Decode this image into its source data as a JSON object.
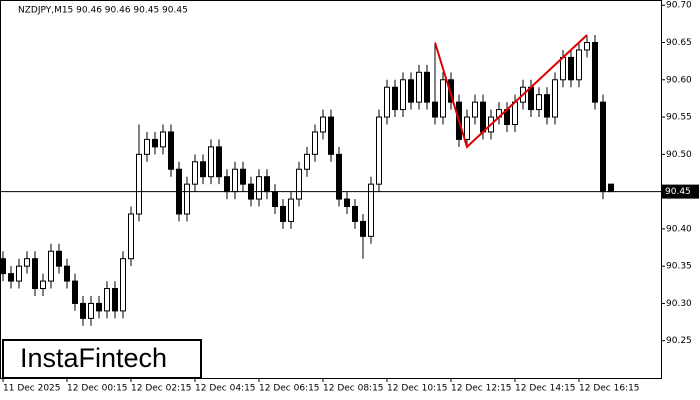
{
  "chart_data": {
    "type": "candlestick",
    "title": "NZDJPY,M15  90.46 90.46 90.45 90.45",
    "logo": "InstaFintech",
    "categories": [
      "11 Dec 2025",
      null,
      null,
      null,
      null,
      null,
      null,
      null,
      "12 Dec 00:15",
      null,
      null,
      null,
      null,
      null,
      null,
      null,
      "12 Dec 02:15",
      null,
      null,
      null,
      null,
      null,
      null,
      null,
      "12 Dec 04:15",
      null,
      null,
      null,
      null,
      null,
      null,
      null,
      "12 Dec 06:15",
      null,
      null,
      null,
      null,
      null,
      null,
      null,
      "12 Dec 08:15",
      null,
      null,
      null,
      null,
      null,
      null,
      null,
      "12 Dec 10:15",
      null,
      null,
      null,
      null,
      null,
      null,
      null,
      "12 Dec 12:15",
      null,
      null,
      null,
      null,
      null,
      null,
      null,
      "12 Dec 14:15",
      null,
      null,
      null,
      null,
      null,
      null,
      null,
      "12 Dec 16:15",
      null,
      null,
      null,
      null
    ],
    "open": [
      90.36,
      90.34,
      90.33,
      90.35,
      90.36,
      90.32,
      90.33,
      90.37,
      90.35,
      90.33,
      90.3,
      90.28,
      90.3,
      90.29,
      90.32,
      90.29,
      90.36,
      90.42,
      90.5,
      90.52,
      90.51,
      90.53,
      90.48,
      90.42,
      90.46,
      90.49,
      90.47,
      90.51,
      90.47,
      90.45,
      90.48,
      90.46,
      90.44,
      90.47,
      90.45,
      90.43,
      90.41,
      90.44,
      90.48,
      90.5,
      90.53,
      90.55,
      90.5,
      90.44,
      90.43,
      90.41,
      90.39,
      90.46,
      90.55,
      90.59,
      90.56,
      90.6,
      90.57,
      90.61,
      90.57,
      90.55,
      90.6,
      90.57,
      90.52,
      90.55,
      90.57,
      90.53,
      90.55,
      90.56,
      90.54,
      90.57,
      90.59,
      90.56,
      90.58,
      90.55,
      90.6,
      90.63,
      90.6,
      90.64,
      90.65,
      90.57,
      90.46
    ],
    "high": [
      90.37,
      90.35,
      90.36,
      90.37,
      90.37,
      90.34,
      90.38,
      90.38,
      90.36,
      90.34,
      90.31,
      90.31,
      90.31,
      90.33,
      90.33,
      90.37,
      90.43,
      90.54,
      90.53,
      90.53,
      90.54,
      90.54,
      90.49,
      90.47,
      90.5,
      90.5,
      90.52,
      90.52,
      90.48,
      90.49,
      90.49,
      90.47,
      90.48,
      90.48,
      90.46,
      90.44,
      90.45,
      90.49,
      90.51,
      90.54,
      90.56,
      90.56,
      90.51,
      90.45,
      90.44,
      90.42,
      90.47,
      90.56,
      90.6,
      90.6,
      90.61,
      90.61,
      90.62,
      90.62,
      90.65,
      90.61,
      90.61,
      90.58,
      90.56,
      90.58,
      90.58,
      90.56,
      90.57,
      90.57,
      90.58,
      90.6,
      90.6,
      90.59,
      90.59,
      90.61,
      90.64,
      90.64,
      90.65,
      90.66,
      90.66,
      90.58,
      90.46
    ],
    "low": [
      90.33,
      90.32,
      90.32,
      90.34,
      90.31,
      90.31,
      90.32,
      90.34,
      90.32,
      90.29,
      90.27,
      90.27,
      90.28,
      90.28,
      90.28,
      90.28,
      90.35,
      90.41,
      90.49,
      90.5,
      90.5,
      90.47,
      90.41,
      90.41,
      90.45,
      90.46,
      90.46,
      90.46,
      90.44,
      90.44,
      90.45,
      90.43,
      90.43,
      90.44,
      90.42,
      90.4,
      90.4,
      90.43,
      90.47,
      90.49,
      90.52,
      90.49,
      90.43,
      90.42,
      90.4,
      90.36,
      90.38,
      90.45,
      90.54,
      90.55,
      90.55,
      90.56,
      90.56,
      90.56,
      90.54,
      90.54,
      90.56,
      90.51,
      90.51,
      90.54,
      90.52,
      90.52,
      90.54,
      90.53,
      90.53,
      90.56,
      90.55,
      90.55,
      90.54,
      90.54,
      90.59,
      90.59,
      90.59,
      90.63,
      90.56,
      90.44,
      90.45
    ],
    "close": [
      90.34,
      90.33,
      90.35,
      90.36,
      90.32,
      90.33,
      90.37,
      90.35,
      90.33,
      90.3,
      90.28,
      90.3,
      90.29,
      90.32,
      90.29,
      90.36,
      90.42,
      90.5,
      90.52,
      90.51,
      90.53,
      90.48,
      90.42,
      90.46,
      90.49,
      90.47,
      90.51,
      90.47,
      90.45,
      90.48,
      90.46,
      90.44,
      90.47,
      90.45,
      90.43,
      90.41,
      90.44,
      90.48,
      90.5,
      90.53,
      90.55,
      90.5,
      90.44,
      90.43,
      90.41,
      90.39,
      90.46,
      90.55,
      90.59,
      90.56,
      90.6,
      90.57,
      90.61,
      90.57,
      90.55,
      90.6,
      90.57,
      90.52,
      90.55,
      90.57,
      90.53,
      90.55,
      90.56,
      90.54,
      90.57,
      90.59,
      90.56,
      90.58,
      90.55,
      90.6,
      90.63,
      90.6,
      90.64,
      90.65,
      90.57,
      90.45,
      90.45
    ],
    "up_color": "#ffffff",
    "down_color": "#000000",
    "ylim": [
      90.2,
      90.707
    ],
    "yticks": [
      {
        "value": 90.25,
        "label": "90.25"
      },
      {
        "value": 90.3,
        "label": "90.30"
      },
      {
        "value": 90.35,
        "label": "90.35"
      },
      {
        "value": 90.4,
        "label": "90.40"
      },
      {
        "value": 90.5,
        "label": "90.50"
      },
      {
        "value": 90.55,
        "label": "90.55"
      },
      {
        "value": 90.6,
        "label": "90.60"
      },
      {
        "value": 90.65,
        "label": "90.65"
      },
      {
        "value": 90.7,
        "label": "90.70"
      }
    ],
    "current_price": 90.45,
    "pattern": {
      "color": "#e00000",
      "points": [
        {
          "x_index": 54,
          "value": 90.65
        },
        {
          "x_index": 58,
          "value": 90.51
        },
        {
          "x_index": 73,
          "value": 90.66
        }
      ]
    }
  }
}
